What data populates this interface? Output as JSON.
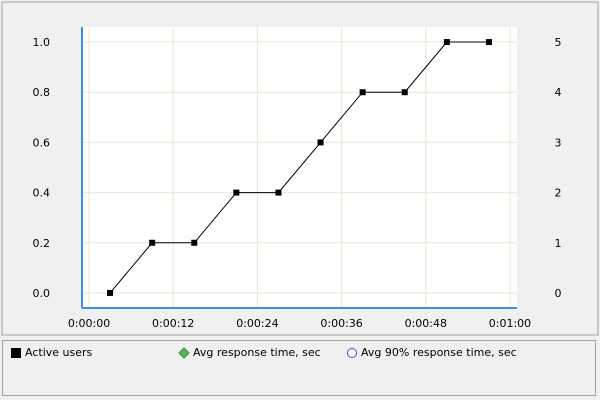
{
  "colors": {
    "axis": "#3c8ee8",
    "grid": "#e4ead2",
    "plot_bg": "#ffffff",
    "series": "#000000"
  },
  "chart_data": {
    "type": "line",
    "title": "",
    "xlabel": "",
    "ylabel": "",
    "x_ticks": [
      "0:00:00",
      "0:00:12",
      "0:00:24",
      "0:00:36",
      "0:00:48",
      "0:01:00"
    ],
    "x_tick_seconds": [
      0,
      12,
      24,
      36,
      48,
      60
    ],
    "xlim_seconds": [
      -1,
      61
    ],
    "y_ticks": [
      "0.0",
      "0.2",
      "0.4",
      "0.6",
      "0.8",
      "1.0"
    ],
    "y_tick_values": [
      0.0,
      0.2,
      0.4,
      0.6,
      0.8,
      1.0
    ],
    "ylim": [
      -0.06,
      1.06
    ],
    "y2_ticks": [
      "0",
      "1",
      "2",
      "3",
      "4",
      "5"
    ],
    "y2_tick_values": [
      0,
      1,
      2,
      3,
      4,
      5
    ],
    "grid": true,
    "legend_position": "bottom",
    "series": [
      {
        "name": "Active users",
        "axis": "right",
        "marker": "square",
        "x_seconds": [
          3,
          9,
          15,
          21,
          27,
          33,
          39,
          45,
          51,
          57
        ],
        "values": [
          0,
          1,
          1,
          2,
          2,
          3,
          4,
          4,
          5,
          5
        ]
      }
    ]
  },
  "legend": {
    "items": [
      {
        "label": "Active users",
        "icon": "black-square-icon"
      },
      {
        "label": "Avg response time, sec",
        "icon": "green-diamond-icon"
      },
      {
        "label": "Avg 90% response time, sec",
        "icon": "blue-circle-icon"
      }
    ]
  }
}
